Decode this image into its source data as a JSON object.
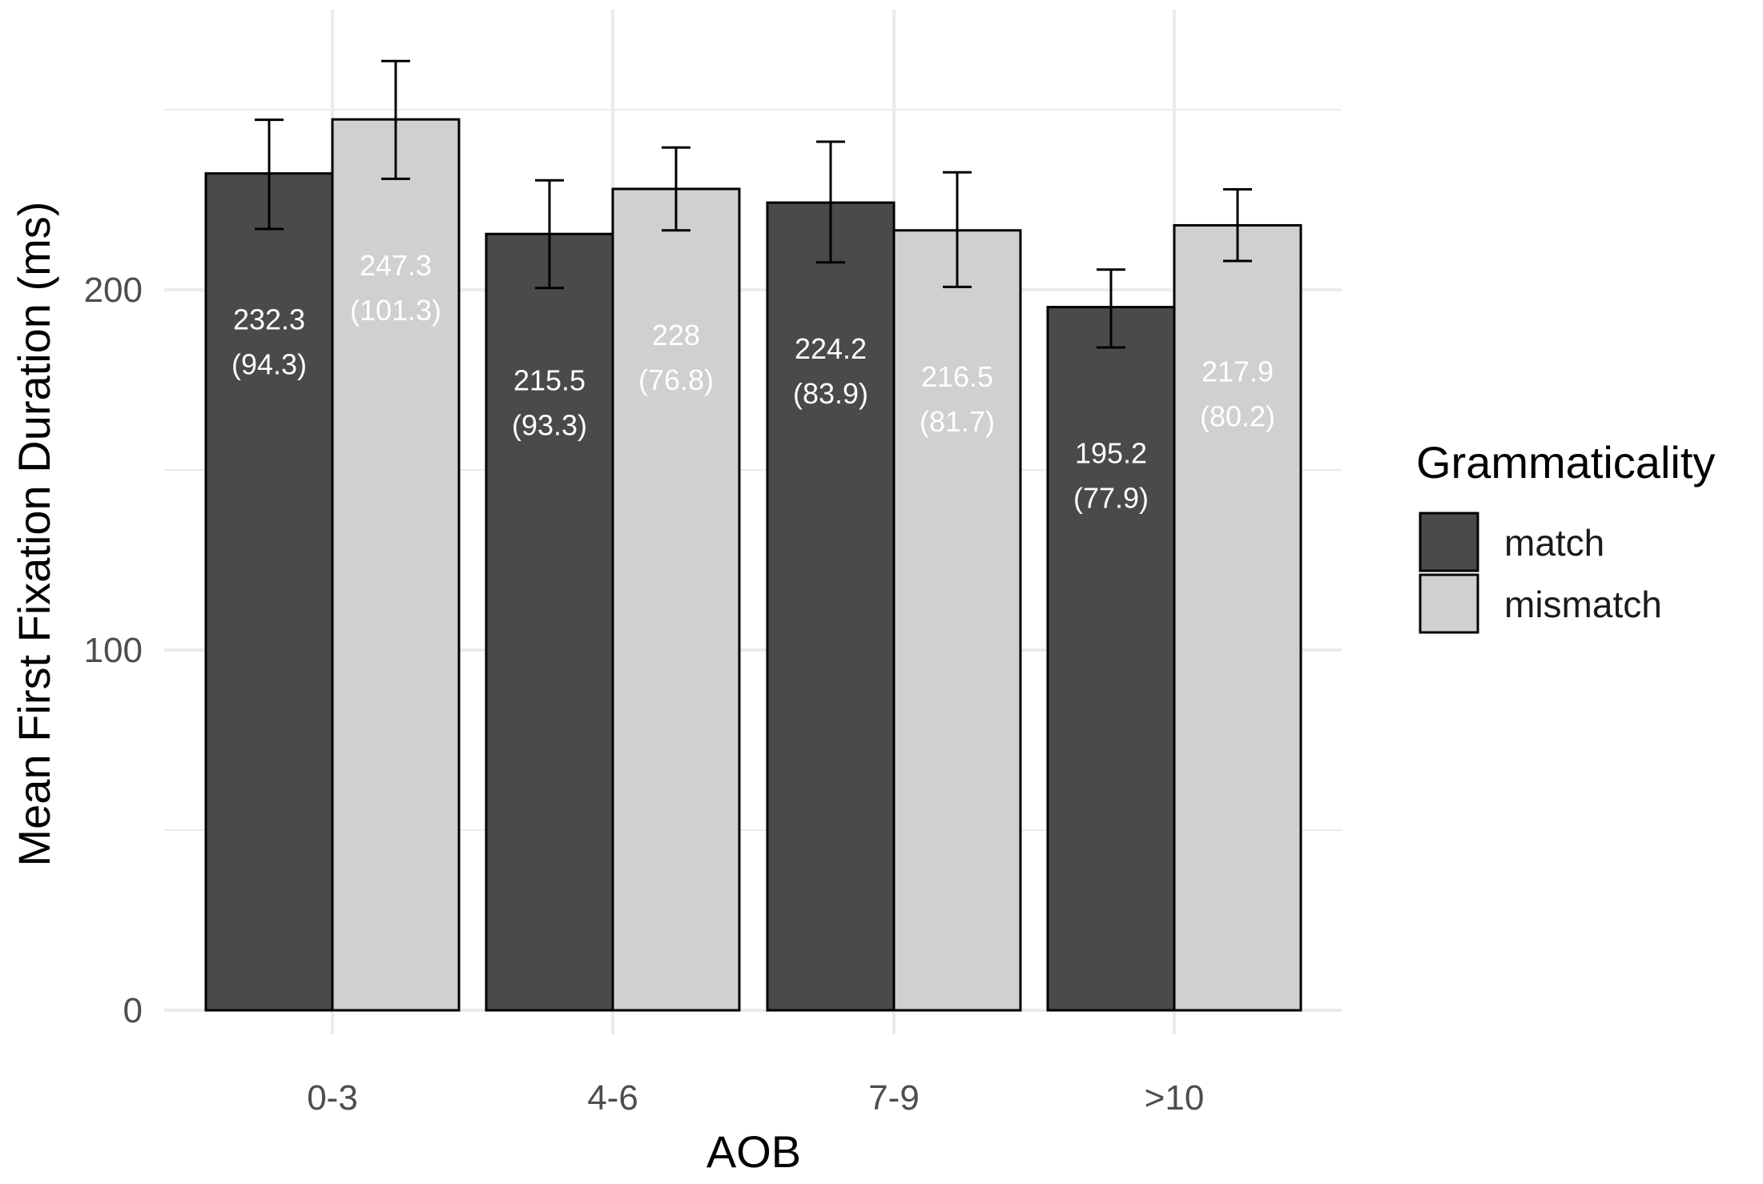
{
  "chart_data": {
    "type": "bar",
    "xlabel": "AOB",
    "ylabel": "Mean First Fixation Duration (ms)",
    "categories": [
      "0-3",
      "4-6",
      "7-9",
      ">10"
    ],
    "ylim": [
      0,
      270
    ],
    "yticks": [
      0,
      100,
      200
    ],
    "grid": true,
    "legend": {
      "title": "Grammaticality",
      "position": "right"
    },
    "series": [
      {
        "name": "match",
        "color": "#4a4a4a",
        "values": [
          232.3,
          215.5,
          224.2,
          195.2
        ],
        "sd": [
          94.3,
          93.3,
          83.9,
          77.9
        ],
        "value_labels": [
          "232.3",
          "215.5",
          "224.2",
          "195.2"
        ],
        "sd_labels": [
          "(94.3)",
          "(93.3)",
          "(83.9)",
          "(77.9)"
        ],
        "error_low": [
          216.9,
          200.5,
          207.6,
          184.0
        ],
        "error_high": [
          247.2,
          230.4,
          241.1,
          205.6
        ]
      },
      {
        "name": "mismatch",
        "color": "#d0d0d0",
        "values": [
          247.3,
          228,
          216.5,
          217.9
        ],
        "sd": [
          101.3,
          76.8,
          81.7,
          80.2
        ],
        "value_labels": [
          "247.3",
          "228",
          "216.5",
          "217.9"
        ],
        "sd_labels": [
          "(101.3)",
          "(76.8)",
          "(81.7)",
          "(80.2)"
        ],
        "error_low": [
          230.8,
          216.5,
          200.8,
          208.0
        ],
        "error_high": [
          263.5,
          239.5,
          232.6,
          227.9
        ]
      }
    ]
  }
}
